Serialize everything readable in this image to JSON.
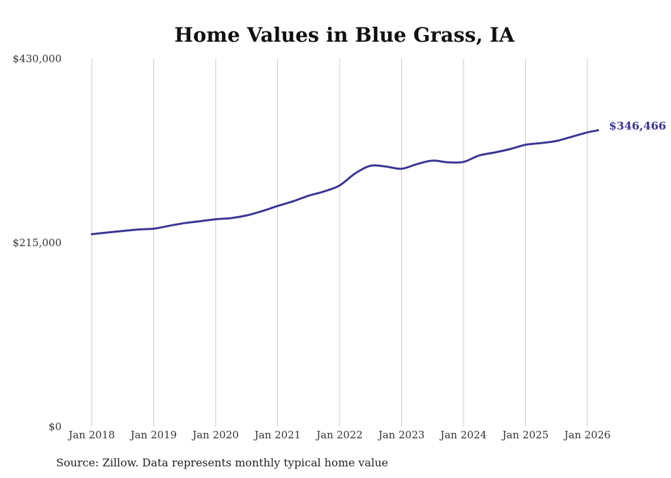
{
  "chart_data": {
    "type": "line",
    "title": "Home Values in Blue Grass, IA",
    "xlabel": "",
    "ylabel": "",
    "ylim": [
      0,
      430000
    ],
    "yticks": [
      0,
      215000,
      430000
    ],
    "ytick_labels": [
      "$0",
      "$215,000",
      "$430,000"
    ],
    "x_tick_labels": [
      "Jan 2018",
      "Jan 2019",
      "Jan 2020",
      "Jan 2021",
      "Jan 2022",
      "Jan 2023",
      "Jan 2024",
      "Jan 2025",
      "Jan 2026"
    ],
    "grid": "vertical",
    "series": [
      {
        "name": "Typical home value",
        "color": "#3b3593",
        "end_label": "$346,466",
        "points": [
          [
            2018.0,
            225000
          ],
          [
            2018.25,
            227000
          ],
          [
            2018.5,
            228800
          ],
          [
            2018.75,
            230500
          ],
          [
            2019.0,
            231500
          ],
          [
            2019.25,
            234800
          ],
          [
            2019.5,
            238000
          ],
          [
            2019.75,
            240200
          ],
          [
            2020.0,
            242500
          ],
          [
            2020.25,
            243800
          ],
          [
            2020.5,
            247000
          ],
          [
            2020.75,
            252000
          ],
          [
            2021.0,
            258000
          ],
          [
            2021.25,
            263500
          ],
          [
            2021.5,
            270000
          ],
          [
            2021.75,
            275000
          ],
          [
            2022.0,
            282000
          ],
          [
            2022.25,
            296000
          ],
          [
            2022.5,
            305000
          ],
          [
            2022.75,
            304000
          ],
          [
            2023.0,
            301500
          ],
          [
            2023.25,
            307000
          ],
          [
            2023.5,
            311000
          ],
          [
            2023.75,
            309000
          ],
          [
            2024.0,
            309500
          ],
          [
            2024.25,
            317000
          ],
          [
            2024.5,
            320500
          ],
          [
            2024.75,
            324500
          ],
          [
            2025.0,
            329500
          ],
          [
            2025.25,
            331500
          ],
          [
            2025.5,
            334000
          ],
          [
            2025.75,
            339000
          ],
          [
            2026.0,
            344000
          ],
          [
            2026.17,
            346466
          ]
        ]
      }
    ]
  },
  "source_text": "Source: Zillow. Data represents monthly typical home value"
}
